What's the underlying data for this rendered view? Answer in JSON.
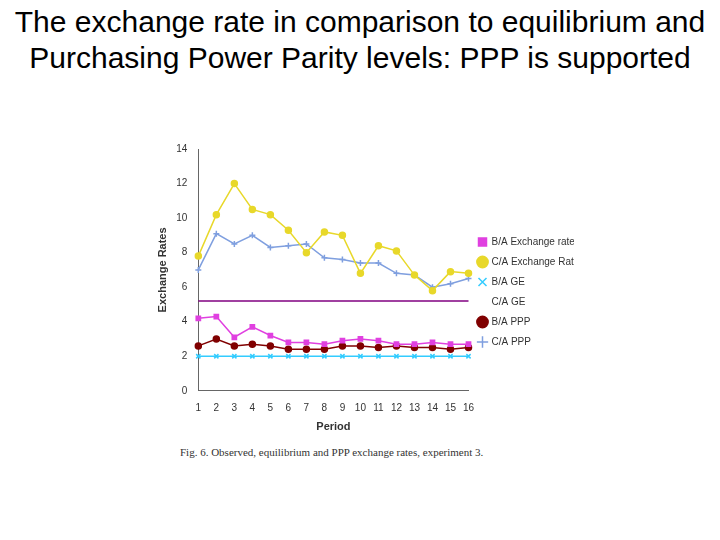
{
  "slide": {
    "title": "The exchange rate in comparison to equilibrium and Purchasing Power Parity levels: PPP is supported"
  },
  "chart_data": {
    "type": "line",
    "caption": "Fig. 6. Observed, equilibrium and PPP exchange rates, experiment 3.",
    "x_label": "Period",
    "y_label": "Exchange Rates",
    "categories": [
      "1",
      "2",
      "3",
      "4",
      "5",
      "6",
      "7",
      "8",
      "9",
      "10",
      "11",
      "12",
      "13",
      "14",
      "15",
      "16"
    ],
    "ylim": [
      0,
      14
    ],
    "yticks": [
      0,
      2,
      4,
      6,
      8,
      10,
      12,
      14
    ],
    "grid": false,
    "legend": "right",
    "series": [
      {
        "name": "B/A Exchange rate",
        "color": "#e040e0",
        "marker": "square",
        "line_style": "solid",
        "values": [
          4.2,
          4.3,
          3.1,
          3.7,
          3.2,
          2.8,
          2.8,
          2.7,
          2.9,
          3.0,
          2.9,
          2.7,
          2.7,
          2.8,
          2.7,
          2.7
        ]
      },
      {
        "name": "C/A Exchange Rate",
        "color": "#e8d82a",
        "marker": "circle",
        "line_style": "solid",
        "values": [
          7.8,
          10.2,
          12.0,
          10.5,
          10.2,
          9.3,
          8.0,
          9.2,
          9.0,
          6.8,
          8.4,
          8.1,
          6.7,
          5.8,
          6.9,
          6.8
        ]
      },
      {
        "name": "B/A GE",
        "color": "#33ccff",
        "marker": "cross",
        "line_style": "solid",
        "values": [
          2.0,
          2.0,
          2.0,
          2.0,
          2.0,
          2.0,
          2.0,
          2.0,
          2.0,
          2.0,
          2.0,
          2.0,
          2.0,
          2.0,
          2.0,
          2.0
        ]
      },
      {
        "name": "C/A GE",
        "color": "#800080",
        "marker": "none",
        "line_style": "solid",
        "values": [
          5.2,
          5.2,
          5.2,
          5.2,
          5.2,
          5.2,
          5.2,
          5.2,
          5.2,
          5.2,
          5.2,
          5.2,
          5.2,
          5.2,
          5.2,
          5.2
        ]
      },
      {
        "name": "B/A PPP",
        "color": "#800000",
        "marker": "circle",
        "line_style": "solid",
        "values": [
          2.6,
          3.0,
          2.6,
          2.7,
          2.6,
          2.4,
          2.4,
          2.4,
          2.6,
          2.6,
          2.5,
          2.6,
          2.5,
          2.5,
          2.4,
          2.5
        ]
      },
      {
        "name": "C/A PPP",
        "color": "#7f9fdf",
        "marker": "plus",
        "line_style": "solid",
        "values": [
          7.0,
          9.1,
          8.5,
          9.0,
          8.3,
          8.4,
          8.5,
          7.7,
          7.6,
          7.4,
          7.4,
          6.8,
          6.7,
          6.0,
          6.2,
          6.5
        ]
      }
    ]
  }
}
